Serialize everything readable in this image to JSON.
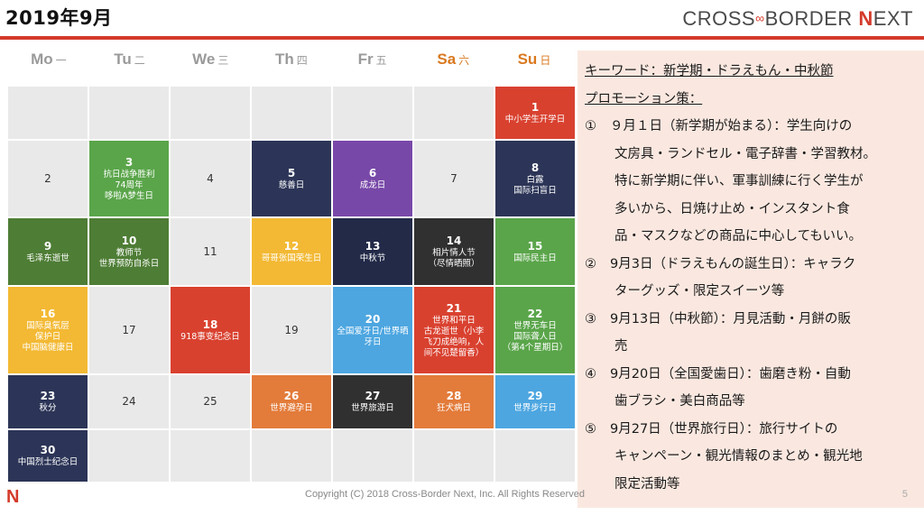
{
  "header": {
    "title": "2019年9月",
    "brand_left": "CROSS",
    "brand_dash": "∞",
    "brand_mid": "BORDER ",
    "brand_n": "N",
    "brand_right": "EXT"
  },
  "weekdays": [
    {
      "en": "Mo",
      "cjk": "一"
    },
    {
      "en": "Tu",
      "cjk": "二"
    },
    {
      "en": "We",
      "cjk": "三"
    },
    {
      "en": "Th",
      "cjk": "四"
    },
    {
      "en": "Fr",
      "cjk": "五"
    },
    {
      "en": "Sa",
      "cjk": "六"
    },
    {
      "en": "Su",
      "cjk": "日"
    }
  ],
  "calendar": {
    "cells": [
      {
        "num": "",
        "text": "",
        "color": "#e9e9e9"
      },
      {
        "num": "",
        "text": "",
        "color": "#e9e9e9"
      },
      {
        "num": "",
        "text": "",
        "color": "#e9e9e9"
      },
      {
        "num": "",
        "text": "",
        "color": "#e9e9e9"
      },
      {
        "num": "",
        "text": "",
        "color": "#e9e9e9"
      },
      {
        "num": "",
        "text": "",
        "color": "#e9e9e9"
      },
      {
        "num": "1",
        "text": "中小学生开学日",
        "color": "#d9412f"
      },
      {
        "num": "2",
        "text": "",
        "color": "#e9e9e9"
      },
      {
        "num": "3",
        "text": "抗日战争胜利\n74周年\n哆啦A梦生日",
        "color": "#5aa54a"
      },
      {
        "num": "4",
        "text": "",
        "color": "#e9e9e9"
      },
      {
        "num": "5",
        "text": "慈善日",
        "color": "#2c3557"
      },
      {
        "num": "6",
        "text": "成龙日",
        "color": "#7848a8"
      },
      {
        "num": "7",
        "text": "",
        "color": "#e9e9e9"
      },
      {
        "num": "8",
        "text": "白露\n国际扫盲日",
        "color": "#2c3557"
      },
      {
        "num": "9",
        "text": "毛泽东逝世",
        "color": "#4e7d35"
      },
      {
        "num": "10",
        "text": "教师节\n世界预防自杀日",
        "color": "#4e7d35"
      },
      {
        "num": "11",
        "text": "",
        "color": "#e9e9e9"
      },
      {
        "num": "12",
        "text": "哥哥张国荣生日",
        "color": "#f3b934"
      },
      {
        "num": "13",
        "text": "中秋节",
        "color": "#222a48"
      },
      {
        "num": "14",
        "text": "相片情人节\n（尽情晒照）",
        "color": "#303030"
      },
      {
        "num": "15",
        "text": "国际民主日",
        "color": "#5aa54a"
      },
      {
        "num": "16",
        "text": "国际臭氧层\n保护日\n中国脑健康日",
        "color": "#f3b934"
      },
      {
        "num": "17",
        "text": "",
        "color": "#e9e9e9"
      },
      {
        "num": "18",
        "text": "918事变纪念日",
        "color": "#d9412f"
      },
      {
        "num": "19",
        "text": "",
        "color": "#e9e9e9"
      },
      {
        "num": "20",
        "text": "全国爱牙日/世界晒\n牙日",
        "color": "#4da6e0"
      },
      {
        "num": "21",
        "text": "世界和平日\n古龙逝世（小李\n飞刀成绝响，人\n间不见楚留香）",
        "color": "#d9412f"
      },
      {
        "num": "22",
        "text": "世界无车日\n国际聋人日\n（第4个星期日）",
        "color": "#5aa54a"
      },
      {
        "num": "23",
        "text": "秋分",
        "color": "#2c3557"
      },
      {
        "num": "24",
        "text": "",
        "color": "#e9e9e9"
      },
      {
        "num": "25",
        "text": "",
        "color": "#e9e9e9"
      },
      {
        "num": "26",
        "text": "世界避孕日",
        "color": "#e37b3a"
      },
      {
        "num": "27",
        "text": "世界旅游日",
        "color": "#303030"
      },
      {
        "num": "28",
        "text": "狂犬病日",
        "color": "#e37b3a"
      },
      {
        "num": "29",
        "text": "世界步行日",
        "color": "#4da6e0"
      },
      {
        "num": "30",
        "text": "中国烈士纪念日",
        "color": "#2c3557"
      },
      {
        "num": "",
        "text": "",
        "color": "#e9e9e9"
      },
      {
        "num": "",
        "text": "",
        "color": "#e9e9e9"
      },
      {
        "num": "",
        "text": "",
        "color": "#e9e9e9"
      },
      {
        "num": "",
        "text": "",
        "color": "#e9e9e9"
      },
      {
        "num": "",
        "text": "",
        "color": "#e9e9e9"
      },
      {
        "num": "",
        "text": "",
        "color": "#e9e9e9"
      }
    ]
  },
  "panel": {
    "lines": [
      {
        "mark": "",
        "text": "キーワード：新学期・ドラえもん・中秋節",
        "heading": true
      },
      {
        "mark": "",
        "text": "プロモーション策：",
        "heading": true
      },
      {
        "mark": "①",
        "text": "９月１日（新学期が始まる）：学生向けの",
        "heading": false
      },
      {
        "mark": "",
        "text": "文房具・ランドセル・電子辞書・学習教材。",
        "heading": false
      },
      {
        "mark": "",
        "text": "特に新学期に伴い、軍事訓練に行く学生が",
        "heading": false
      },
      {
        "mark": "",
        "text": "多いから、日焼け止め・インスタント食",
        "heading": false
      },
      {
        "mark": "",
        "text": "品・マスクなどの商品に中心してもいい。",
        "heading": false
      },
      {
        "mark": "②",
        "text": "9月3日（ドラえもんの誕生日）：キャラク",
        "heading": false
      },
      {
        "mark": "",
        "text": "ターグッズ・限定スイーツ等",
        "heading": false
      },
      {
        "mark": "③",
        "text": "9月13日（中秋節）：月見活動・月餅の販",
        "heading": false
      },
      {
        "mark": "",
        "text": "売",
        "heading": false
      },
      {
        "mark": "④",
        "text": "9月20日（全国愛歯日）：歯磨き粉・自動",
        "heading": false
      },
      {
        "mark": "",
        "text": "歯ブラシ・美白商品等",
        "heading": false
      },
      {
        "mark": "⑤",
        "text": "9月27日（世界旅行日）：旅行サイトの",
        "heading": false
      },
      {
        "mark": "",
        "text": "キャンペーン・観光情報のまとめ・観光地",
        "heading": false
      },
      {
        "mark": "",
        "text": "限定活動等",
        "heading": false
      }
    ]
  },
  "footer": {
    "logo": "N",
    "copyright": "Copyright (C) 2018 Cross-Border Next, Inc. All Rights Reserved",
    "page_number": "5"
  }
}
